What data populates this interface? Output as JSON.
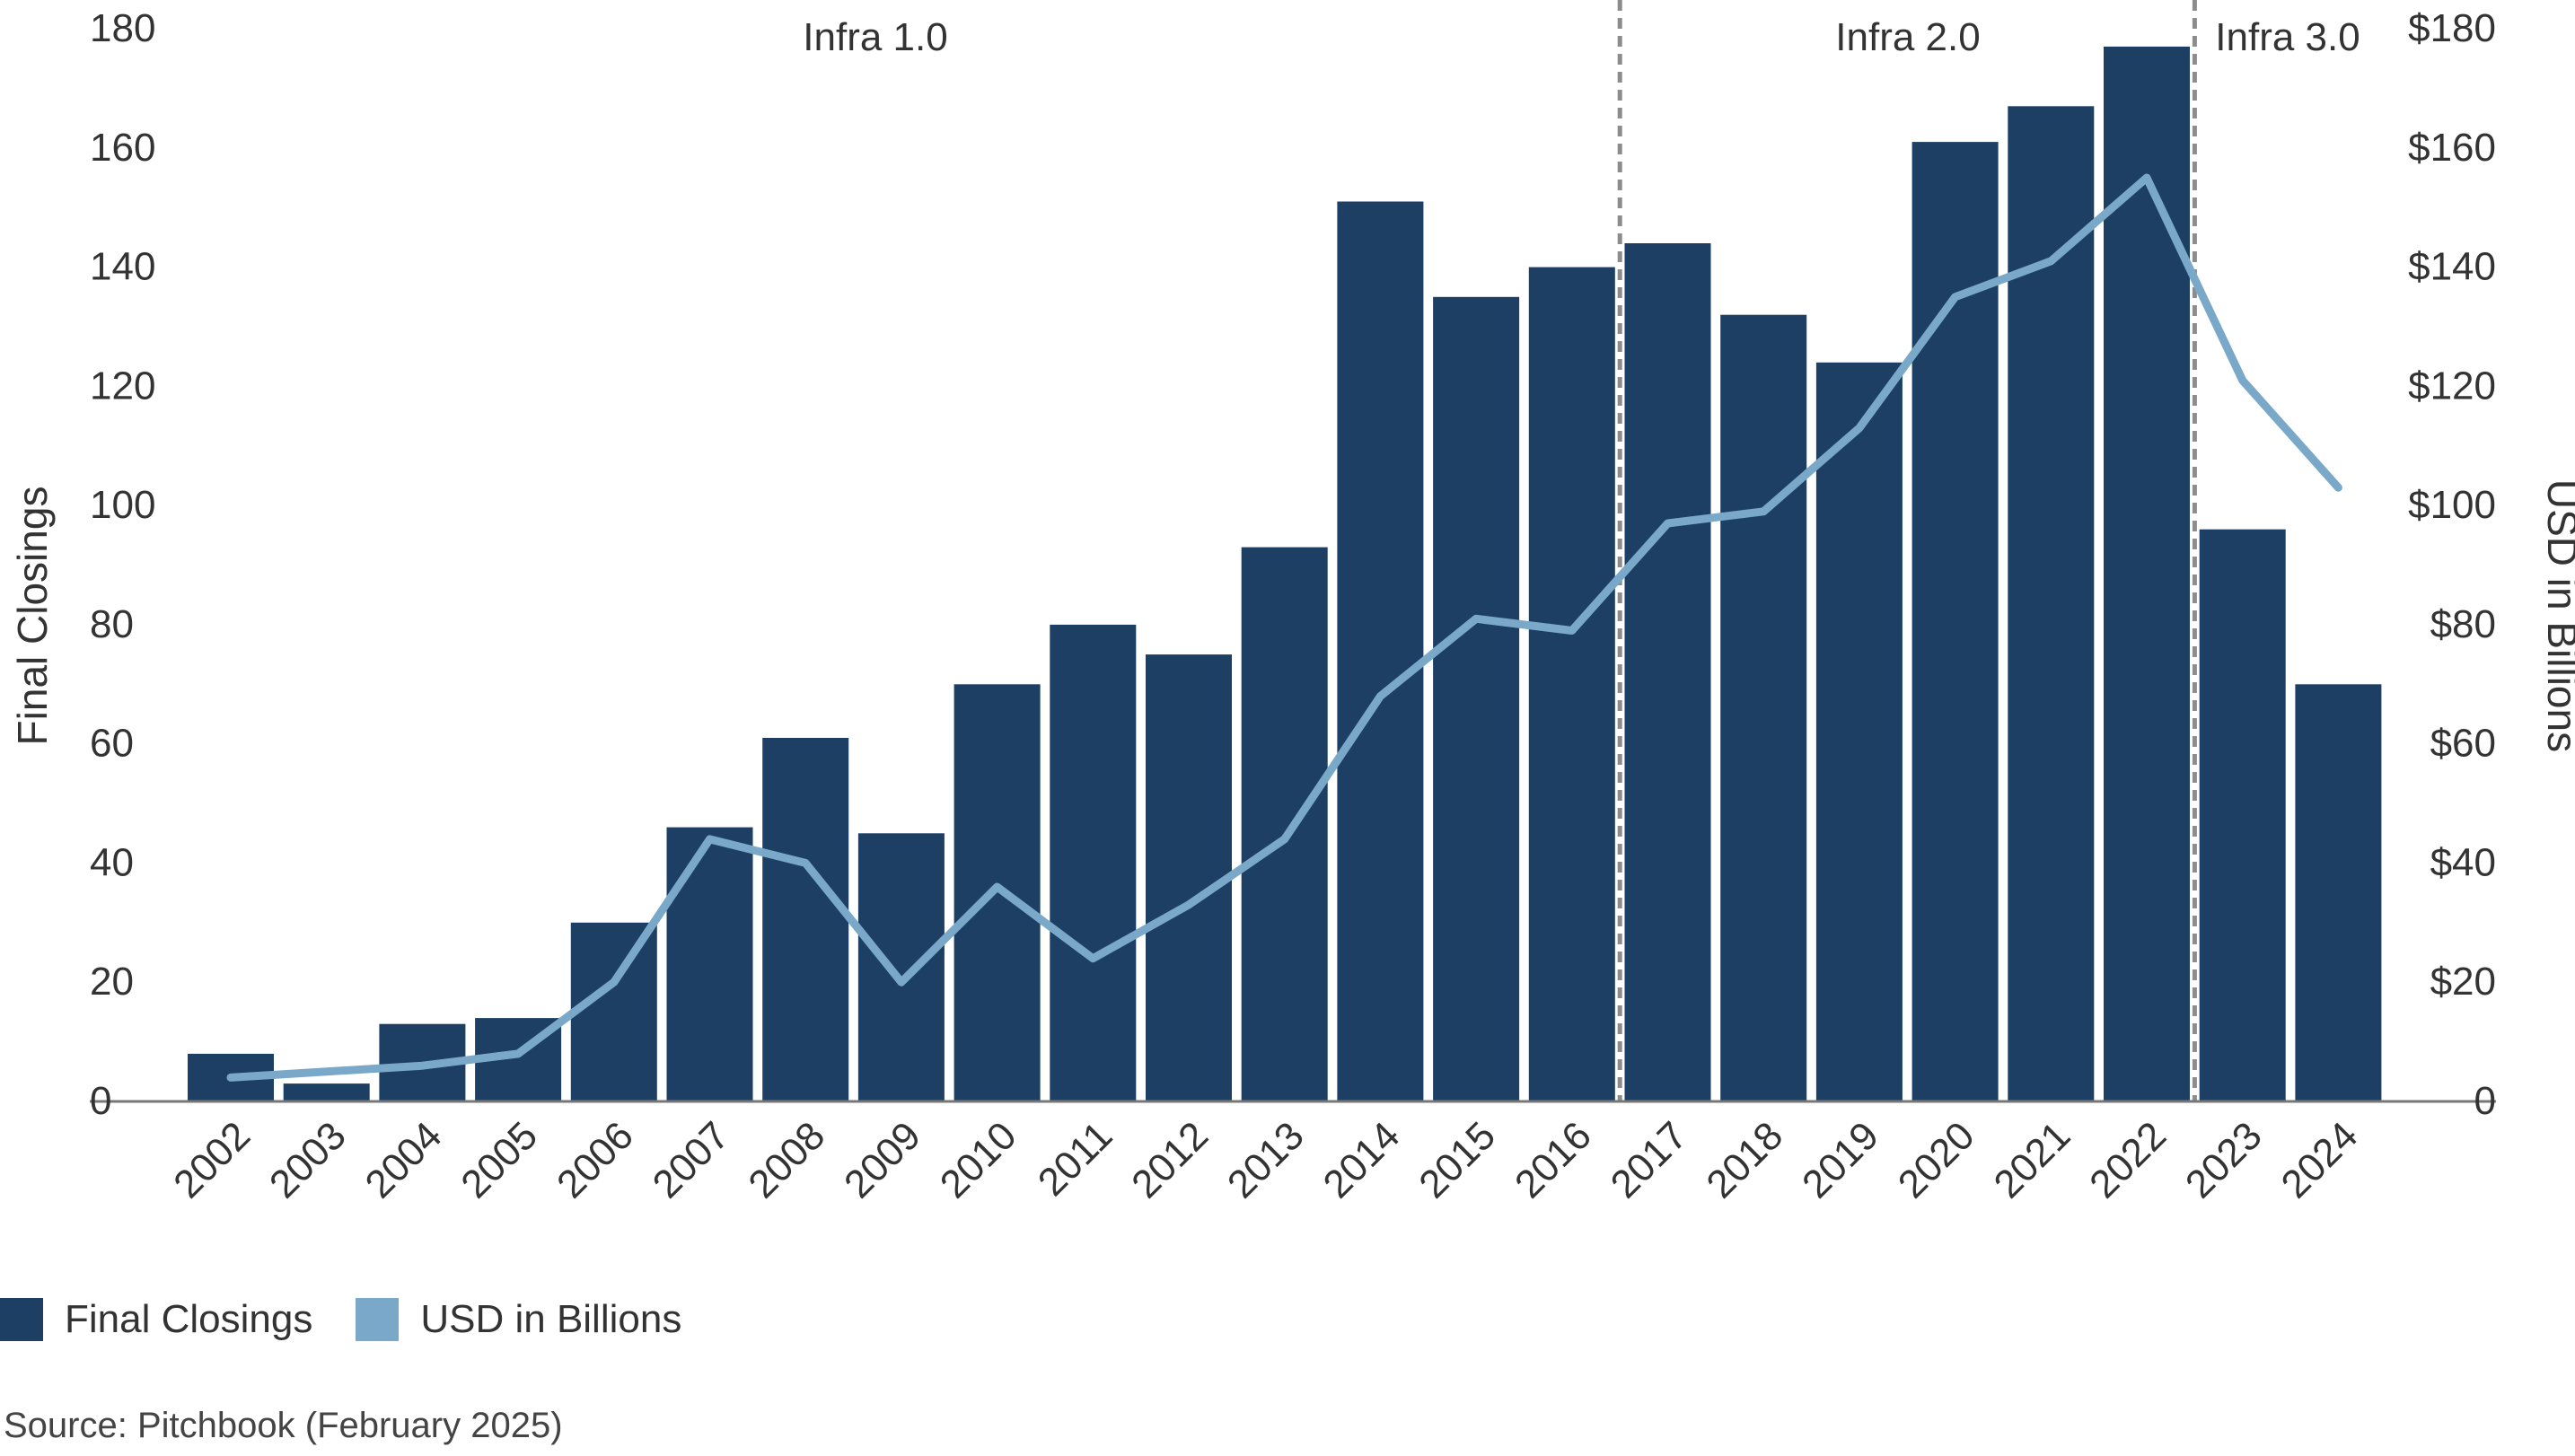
{
  "chart_data": {
    "type": "bar",
    "categories": [
      "2002",
      "2003",
      "2004",
      "2005",
      "2006",
      "2007",
      "2008",
      "2009",
      "2010",
      "2011",
      "2012",
      "2013",
      "2014",
      "2015",
      "2016",
      "2017",
      "2018",
      "2019",
      "2020",
      "2021",
      "2022",
      "2023",
      "2024"
    ],
    "series": [
      {
        "name": "Final Closings",
        "type": "bar",
        "axis": "left",
        "color": "#1c3f63",
        "values": [
          8,
          3,
          13,
          14,
          30,
          46,
          61,
          45,
          70,
          80,
          75,
          93,
          151,
          135,
          140,
          144,
          132,
          124,
          161,
          167,
          177,
          96,
          70
        ]
      },
      {
        "name": "USD in Billions",
        "type": "line",
        "axis": "right",
        "color": "#7aa8c9",
        "values": [
          4,
          5,
          6,
          8,
          20,
          44,
          40,
          20,
          36,
          24,
          33,
          44,
          68,
          81,
          79,
          97,
          99,
          113,
          135,
          141,
          155,
          121,
          103
        ]
      }
    ],
    "ylabel": "Final Closings",
    "y2label": "USD in Billions",
    "ylim": [
      0,
      180
    ],
    "y2lim": [
      0,
      180
    ],
    "yticks": [
      "0",
      "20",
      "40",
      "60",
      "80",
      "100",
      "120",
      "140",
      "160",
      "180"
    ],
    "y2ticks": [
      "0",
      "$20",
      "$40",
      "$60",
      "$80",
      "$100",
      "$120",
      "$140",
      "$160",
      "$180"
    ],
    "eras": [
      {
        "label": "Infra 1.0"
      },
      {
        "label": "Infra 2.0"
      },
      {
        "label": "Infra 3.0"
      }
    ],
    "era_dividers": [
      {
        "between": [
          "2016",
          "2017"
        ]
      },
      {
        "between": [
          "2022",
          "2023"
        ]
      }
    ],
    "grid": false,
    "legend_position": "bottom-left"
  },
  "legend": [
    {
      "label": "Final Closings",
      "color": "#1c3f63"
    },
    {
      "label": "USD in Billions",
      "color": "#7aa8c9"
    }
  ],
  "source": "Source: Pitchbook (February 2025)"
}
